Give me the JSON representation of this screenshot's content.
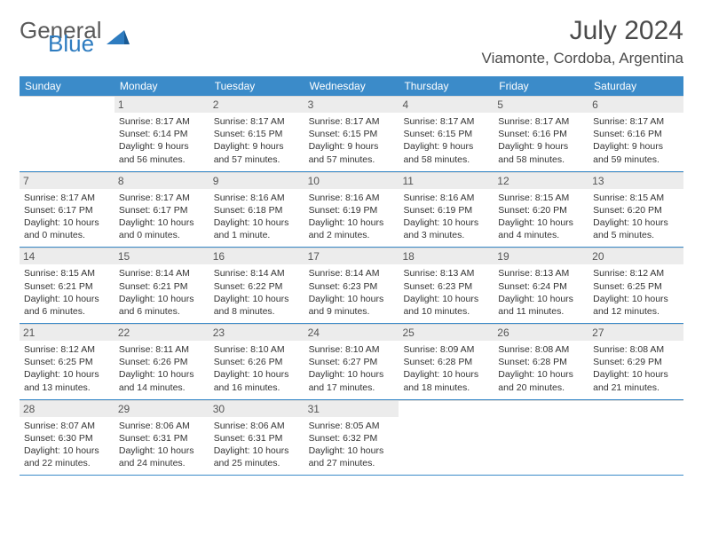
{
  "logo": {
    "text1": "General",
    "text2": "Blue"
  },
  "title": "July 2024",
  "location": "Viamonte, Cordoba, Argentina",
  "colors": {
    "header_bg": "#3b8bc9",
    "header_text": "#ffffff",
    "daynum_bg": "#ececec",
    "row_border": "#3b8bc9",
    "logo_gray": "#5a5a5a",
    "logo_blue": "#2e7cc0"
  },
  "weekdays": [
    "Sunday",
    "Monday",
    "Tuesday",
    "Wednesday",
    "Thursday",
    "Friday",
    "Saturday"
  ],
  "weeks": [
    [
      {
        "n": "",
        "sr": "",
        "ss": "",
        "dl": ""
      },
      {
        "n": "1",
        "sr": "Sunrise: 8:17 AM",
        "ss": "Sunset: 6:14 PM",
        "dl": "Daylight: 9 hours and 56 minutes."
      },
      {
        "n": "2",
        "sr": "Sunrise: 8:17 AM",
        "ss": "Sunset: 6:15 PM",
        "dl": "Daylight: 9 hours and 57 minutes."
      },
      {
        "n": "3",
        "sr": "Sunrise: 8:17 AM",
        "ss": "Sunset: 6:15 PM",
        "dl": "Daylight: 9 hours and 57 minutes."
      },
      {
        "n": "4",
        "sr": "Sunrise: 8:17 AM",
        "ss": "Sunset: 6:15 PM",
        "dl": "Daylight: 9 hours and 58 minutes."
      },
      {
        "n": "5",
        "sr": "Sunrise: 8:17 AM",
        "ss": "Sunset: 6:16 PM",
        "dl": "Daylight: 9 hours and 58 minutes."
      },
      {
        "n": "6",
        "sr": "Sunrise: 8:17 AM",
        "ss": "Sunset: 6:16 PM",
        "dl": "Daylight: 9 hours and 59 minutes."
      }
    ],
    [
      {
        "n": "7",
        "sr": "Sunrise: 8:17 AM",
        "ss": "Sunset: 6:17 PM",
        "dl": "Daylight: 10 hours and 0 minutes."
      },
      {
        "n": "8",
        "sr": "Sunrise: 8:17 AM",
        "ss": "Sunset: 6:17 PM",
        "dl": "Daylight: 10 hours and 0 minutes."
      },
      {
        "n": "9",
        "sr": "Sunrise: 8:16 AM",
        "ss": "Sunset: 6:18 PM",
        "dl": "Daylight: 10 hours and 1 minute."
      },
      {
        "n": "10",
        "sr": "Sunrise: 8:16 AM",
        "ss": "Sunset: 6:19 PM",
        "dl": "Daylight: 10 hours and 2 minutes."
      },
      {
        "n": "11",
        "sr": "Sunrise: 8:16 AM",
        "ss": "Sunset: 6:19 PM",
        "dl": "Daylight: 10 hours and 3 minutes."
      },
      {
        "n": "12",
        "sr": "Sunrise: 8:15 AM",
        "ss": "Sunset: 6:20 PM",
        "dl": "Daylight: 10 hours and 4 minutes."
      },
      {
        "n": "13",
        "sr": "Sunrise: 8:15 AM",
        "ss": "Sunset: 6:20 PM",
        "dl": "Daylight: 10 hours and 5 minutes."
      }
    ],
    [
      {
        "n": "14",
        "sr": "Sunrise: 8:15 AM",
        "ss": "Sunset: 6:21 PM",
        "dl": "Daylight: 10 hours and 6 minutes."
      },
      {
        "n": "15",
        "sr": "Sunrise: 8:14 AM",
        "ss": "Sunset: 6:21 PM",
        "dl": "Daylight: 10 hours and 6 minutes."
      },
      {
        "n": "16",
        "sr": "Sunrise: 8:14 AM",
        "ss": "Sunset: 6:22 PM",
        "dl": "Daylight: 10 hours and 8 minutes."
      },
      {
        "n": "17",
        "sr": "Sunrise: 8:14 AM",
        "ss": "Sunset: 6:23 PM",
        "dl": "Daylight: 10 hours and 9 minutes."
      },
      {
        "n": "18",
        "sr": "Sunrise: 8:13 AM",
        "ss": "Sunset: 6:23 PM",
        "dl": "Daylight: 10 hours and 10 minutes."
      },
      {
        "n": "19",
        "sr": "Sunrise: 8:13 AM",
        "ss": "Sunset: 6:24 PM",
        "dl": "Daylight: 10 hours and 11 minutes."
      },
      {
        "n": "20",
        "sr": "Sunrise: 8:12 AM",
        "ss": "Sunset: 6:25 PM",
        "dl": "Daylight: 10 hours and 12 minutes."
      }
    ],
    [
      {
        "n": "21",
        "sr": "Sunrise: 8:12 AM",
        "ss": "Sunset: 6:25 PM",
        "dl": "Daylight: 10 hours and 13 minutes."
      },
      {
        "n": "22",
        "sr": "Sunrise: 8:11 AM",
        "ss": "Sunset: 6:26 PM",
        "dl": "Daylight: 10 hours and 14 minutes."
      },
      {
        "n": "23",
        "sr": "Sunrise: 8:10 AM",
        "ss": "Sunset: 6:26 PM",
        "dl": "Daylight: 10 hours and 16 minutes."
      },
      {
        "n": "24",
        "sr": "Sunrise: 8:10 AM",
        "ss": "Sunset: 6:27 PM",
        "dl": "Daylight: 10 hours and 17 minutes."
      },
      {
        "n": "25",
        "sr": "Sunrise: 8:09 AM",
        "ss": "Sunset: 6:28 PM",
        "dl": "Daylight: 10 hours and 18 minutes."
      },
      {
        "n": "26",
        "sr": "Sunrise: 8:08 AM",
        "ss": "Sunset: 6:28 PM",
        "dl": "Daylight: 10 hours and 20 minutes."
      },
      {
        "n": "27",
        "sr": "Sunrise: 8:08 AM",
        "ss": "Sunset: 6:29 PM",
        "dl": "Daylight: 10 hours and 21 minutes."
      }
    ],
    [
      {
        "n": "28",
        "sr": "Sunrise: 8:07 AM",
        "ss": "Sunset: 6:30 PM",
        "dl": "Daylight: 10 hours and 22 minutes."
      },
      {
        "n": "29",
        "sr": "Sunrise: 8:06 AM",
        "ss": "Sunset: 6:31 PM",
        "dl": "Daylight: 10 hours and 24 minutes."
      },
      {
        "n": "30",
        "sr": "Sunrise: 8:06 AM",
        "ss": "Sunset: 6:31 PM",
        "dl": "Daylight: 10 hours and 25 minutes."
      },
      {
        "n": "31",
        "sr": "Sunrise: 8:05 AM",
        "ss": "Sunset: 6:32 PM",
        "dl": "Daylight: 10 hours and 27 minutes."
      },
      {
        "n": "",
        "sr": "",
        "ss": "",
        "dl": ""
      },
      {
        "n": "",
        "sr": "",
        "ss": "",
        "dl": ""
      },
      {
        "n": "",
        "sr": "",
        "ss": "",
        "dl": ""
      }
    ]
  ]
}
